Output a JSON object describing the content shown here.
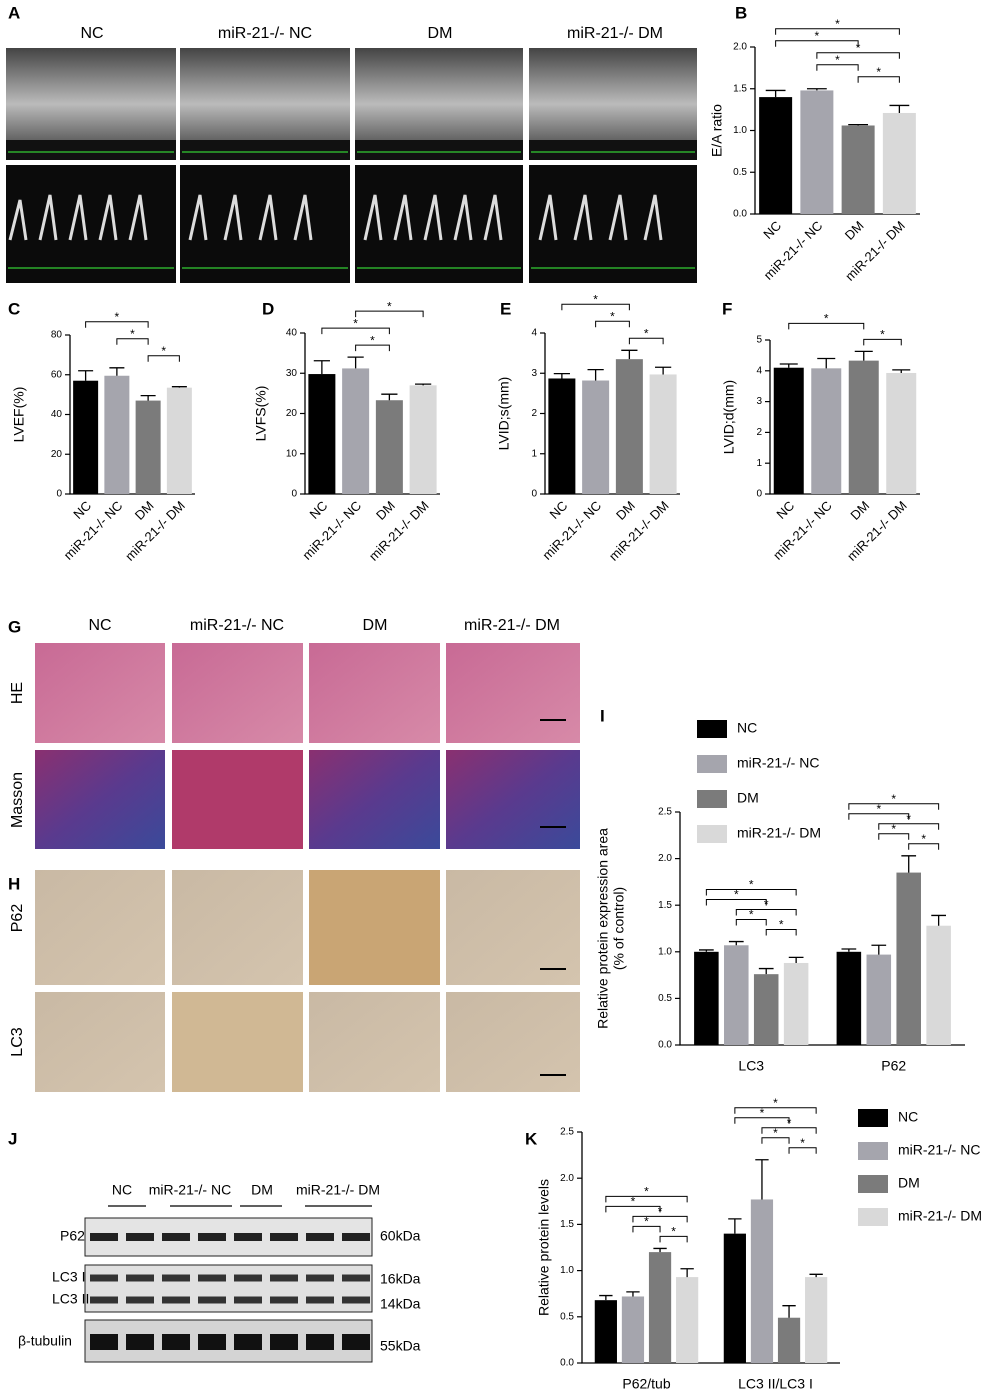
{
  "figure": {
    "panel_letters": [
      "A",
      "B",
      "C",
      "D",
      "E",
      "F",
      "G",
      "H",
      "I",
      "J",
      "K"
    ],
    "echo": {
      "groups": [
        "NC",
        "miR-21-/- NC",
        "DM",
        "miR-21-/- DM"
      ]
    },
    "histology": {
      "groups": [
        "NC",
        "miR-21-/- NC",
        "DM",
        "miR-21-/- DM"
      ],
      "rows": [
        "HE",
        "Masson",
        "P62",
        "LC3"
      ]
    },
    "blot": {
      "groups": [
        "NC",
        "miR-21-/- NC",
        "DM",
        "miR-21-/- DM"
      ],
      "rows": [
        "P62",
        "LC3 I",
        "LC3 II",
        "β-tubulin"
      ],
      "sizes": [
        "60kDa",
        "16kDa",
        "14kDa",
        "55kDa"
      ]
    }
  },
  "chart_data": [
    {
      "type": "bar",
      "ylabel": [
        "E/A ratio"
      ],
      "categories": [
        "NC",
        "miR-21-/- NC",
        "DM",
        "miR-21-/- DM"
      ],
      "values": [
        1.4,
        1.48,
        1.06,
        1.21
      ],
      "errors": [
        0.08,
        0.02,
        0.01,
        0.09
      ],
      "colors": [
        "#000000",
        "#a5a5ad",
        "#7b7b7b",
        "#d9d9d9"
      ],
      "ylim": [
        0,
        2
      ],
      "yticks": [
        {
          "value": 0,
          "label": "0.0"
        },
        0.5,
        {
          "value": 1,
          "label": "1.0"
        },
        1.5,
        {
          "value": 2,
          "label": "2.0"
        }
      ],
      "significance": [
        {
          "pair": [
            "NC",
            "miR-21-/- DM"
          ],
          "label": "*"
        },
        {
          "pair": [
            "NC",
            "DM"
          ],
          "label": "*"
        },
        {
          "pair": [
            "miR-21-/- NC",
            "miR-21-/- DM"
          ],
          "label": "*"
        },
        {
          "pair": [
            "miR-21-/- NC",
            "DM"
          ],
          "label": "*"
        },
        {
          "pair": [
            "DM",
            "miR-21-/- DM"
          ],
          "label": "*"
        }
      ]
    },
    {
      "type": "bar",
      "ylabel": [
        "LVEF(%)"
      ],
      "categories": [
        "NC",
        "miR-21-/- NC",
        "DM",
        "miR-21-/- DM"
      ],
      "values": [
        57,
        59.5,
        47,
        53.5
      ],
      "errors": [
        5,
        4,
        2.5,
        0.5
      ],
      "colors": [
        "#000000",
        "#a5a5ad",
        "#7b7b7b",
        "#d9d9d9"
      ],
      "ylim": [
        0,
        80
      ],
      "yticks": [
        0,
        20,
        40,
        60,
        80
      ],
      "significance": [
        {
          "pair": [
            "NC",
            "DM"
          ],
          "label": "*"
        },
        {
          "pair": [
            "miR-21-/- NC",
            "DM"
          ],
          "label": "*"
        },
        {
          "pair": [
            "DM",
            "miR-21-/- DM"
          ],
          "label": "*"
        }
      ]
    },
    {
      "type": "bar",
      "ylabel": [
        "LVFS(%)"
      ],
      "categories": [
        "NC",
        "miR-21-/- NC",
        "DM",
        "miR-21-/- DM"
      ],
      "values": [
        29.8,
        31.2,
        23.3,
        27
      ],
      "errors": [
        3.3,
        2.8,
        1.5,
        0.3
      ],
      "colors": [
        "#000000",
        "#a5a5ad",
        "#7b7b7b",
        "#d9d9d9"
      ],
      "ylim": [
        0,
        40
      ],
      "yticks": [
        0,
        10,
        20,
        30,
        40
      ],
      "significance": [
        {
          "pair": [
            "miR-21-/- NC",
            "miR-21-/- DM"
          ],
          "label": "*"
        },
        {
          "pair": [
            "NC",
            "DM"
          ],
          "label": "*"
        },
        {
          "pair": [
            "miR-21-/- NC",
            "DM"
          ],
          "label": "*"
        }
      ]
    },
    {
      "type": "bar",
      "ylabel": [
        "LVID;s(mm)"
      ],
      "categories": [
        "NC",
        "miR-21-/- NC",
        "DM",
        "miR-21-/- DM"
      ],
      "values": [
        2.87,
        2.82,
        3.35,
        2.97
      ],
      "errors": [
        0.12,
        0.27,
        0.22,
        0.18
      ],
      "colors": [
        "#000000",
        "#a5a5ad",
        "#7b7b7b",
        "#d9d9d9"
      ],
      "ylim": [
        0,
        4
      ],
      "yticks": [
        0,
        1,
        2,
        3,
        4
      ],
      "significance": [
        {
          "pair": [
            "NC",
            "DM"
          ],
          "label": "*"
        },
        {
          "pair": [
            "miR-21-/- NC",
            "DM"
          ],
          "label": "*"
        },
        {
          "pair": [
            "DM",
            "miR-21-/- DM"
          ],
          "label": "*"
        }
      ]
    },
    {
      "type": "bar",
      "ylabel": [
        "LVID;d(mm)"
      ],
      "categories": [
        "NC",
        "miR-21-/- NC",
        "DM",
        "miR-21-/- DM"
      ],
      "values": [
        4.1,
        4.08,
        4.33,
        3.93
      ],
      "errors": [
        0.12,
        0.32,
        0.3,
        0.1
      ],
      "colors": [
        "#000000",
        "#a5a5ad",
        "#7b7b7b",
        "#d9d9d9"
      ],
      "ylim": [
        0,
        5
      ],
      "yticks": [
        0,
        1,
        2,
        3,
        4,
        5
      ],
      "significance": [
        {
          "pair": [
            "NC",
            "DM"
          ],
          "label": "*"
        },
        {
          "pair": [
            "DM",
            "miR-21-/- DM"
          ],
          "label": "*"
        }
      ]
    },
    {
      "type": "grouped-bar",
      "ylabel": [
        "Relative protein expression area",
        "(% of control)"
      ],
      "categories": [
        "LC3",
        "P62"
      ],
      "series": [
        {
          "name": "NC",
          "color": "#000000",
          "values": [
            1.0,
            1.0
          ],
          "errors": [
            0.02,
            0.03
          ]
        },
        {
          "name": "miR-21-/- NC",
          "color": "#a5a5ad",
          "values": [
            1.07,
            0.97
          ],
          "errors": [
            0.04,
            0.1
          ]
        },
        {
          "name": "DM",
          "color": "#7b7b7b",
          "values": [
            0.76,
            1.85
          ],
          "errors": [
            0.06,
            0.18
          ]
        },
        {
          "name": "miR-21-/- DM",
          "color": "#d9d9d9",
          "values": [
            0.88,
            1.28
          ],
          "errors": [
            0.06,
            0.11
          ]
        }
      ],
      "ylim": [
        0,
        2.5
      ],
      "yticks": [
        {
          "value": 0,
          "label": "0.0"
        },
        0.5,
        {
          "value": 1,
          "label": "1.0"
        },
        1.5,
        {
          "value": 2,
          "label": "2.0"
        },
        2.5
      ],
      "significance": [
        {
          "category": "LC3",
          "pair": [
            "NC",
            "miR-21-/- DM"
          ],
          "label": "*"
        },
        {
          "category": "LC3",
          "pair": [
            "NC",
            "DM"
          ],
          "label": "*"
        },
        {
          "category": "LC3",
          "pair": [
            "miR-21-/- NC",
            "miR-21-/- DM"
          ],
          "label": "*"
        },
        {
          "category": "LC3",
          "pair": [
            "miR-21-/- NC",
            "DM"
          ],
          "label": "*"
        },
        {
          "category": "LC3",
          "pair": [
            "DM",
            "miR-21-/- DM"
          ],
          "label": "*"
        },
        {
          "category": "P62",
          "pair": [
            "NC",
            "miR-21-/- DM"
          ],
          "label": "*"
        },
        {
          "category": "P62",
          "pair": [
            "NC",
            "DM"
          ],
          "label": "*"
        },
        {
          "category": "P62",
          "pair": [
            "miR-21-/- NC",
            "miR-21-/- DM"
          ],
          "label": "*"
        },
        {
          "category": "P62",
          "pair": [
            "miR-21-/- NC",
            "DM"
          ],
          "label": "*"
        },
        {
          "category": "P62",
          "pair": [
            "DM",
            "miR-21-/- DM"
          ],
          "label": "*"
        }
      ]
    },
    {
      "type": "grouped-bar",
      "ylabel": [
        "Relative protein levels"
      ],
      "categories": [
        "P62/tub",
        "LC3 II/LC3 I"
      ],
      "series": [
        {
          "name": "NC",
          "color": "#000000",
          "values": [
            0.68,
            1.4
          ],
          "errors": [
            0.05,
            0.16
          ]
        },
        {
          "name": "miR-21-/- NC",
          "color": "#a5a5ad",
          "values": [
            0.72,
            1.77
          ],
          "errors": [
            0.05,
            0.43
          ]
        },
        {
          "name": "DM",
          "color": "#7b7b7b",
          "values": [
            1.2,
            0.49
          ],
          "errors": [
            0.04,
            0.13
          ]
        },
        {
          "name": "miR-21-/- DM",
          "color": "#d9d9d9",
          "values": [
            0.93,
            0.93
          ],
          "errors": [
            0.09,
            0.03
          ]
        }
      ],
      "ylim": [
        0,
        2.5
      ],
      "yticks": [
        {
          "value": 0,
          "label": "0.0"
        },
        0.5,
        {
          "value": 1,
          "label": "1.0"
        },
        1.5,
        {
          "value": 2,
          "label": "2.0"
        },
        2.5
      ],
      "significance": [
        {
          "category": "P62/tub",
          "pair": [
            "NC",
            "miR-21-/- DM"
          ],
          "label": "*"
        },
        {
          "category": "P62/tub",
          "pair": [
            "NC",
            "DM"
          ],
          "label": "*"
        },
        {
          "category": "P62/tub",
          "pair": [
            "miR-21-/- NC",
            "miR-21-/- DM"
          ],
          "label": "*"
        },
        {
          "category": "P62/tub",
          "pair": [
            "miR-21-/- NC",
            "DM"
          ],
          "label": "*"
        },
        {
          "category": "P62/tub",
          "pair": [
            "DM",
            "miR-21-/- DM"
          ],
          "label": "*"
        },
        {
          "category": "LC3 II/LC3 I",
          "pair": [
            "NC",
            "miR-21-/- DM"
          ],
          "label": "*"
        },
        {
          "category": "LC3 II/LC3 I",
          "pair": [
            "NC",
            "DM"
          ],
          "label": "*"
        },
        {
          "category": "LC3 II/LC3 I",
          "pair": [
            "miR-21-/- NC",
            "miR-21-/- DM"
          ],
          "label": "*"
        },
        {
          "category": "LC3 II/LC3 I",
          "pair": [
            "miR-21-/- NC",
            "DM"
          ],
          "label": "*"
        },
        {
          "category": "LC3 II/LC3 I",
          "pair": [
            "DM",
            "miR-21-/- DM"
          ],
          "label": "*"
        }
      ]
    }
  ]
}
